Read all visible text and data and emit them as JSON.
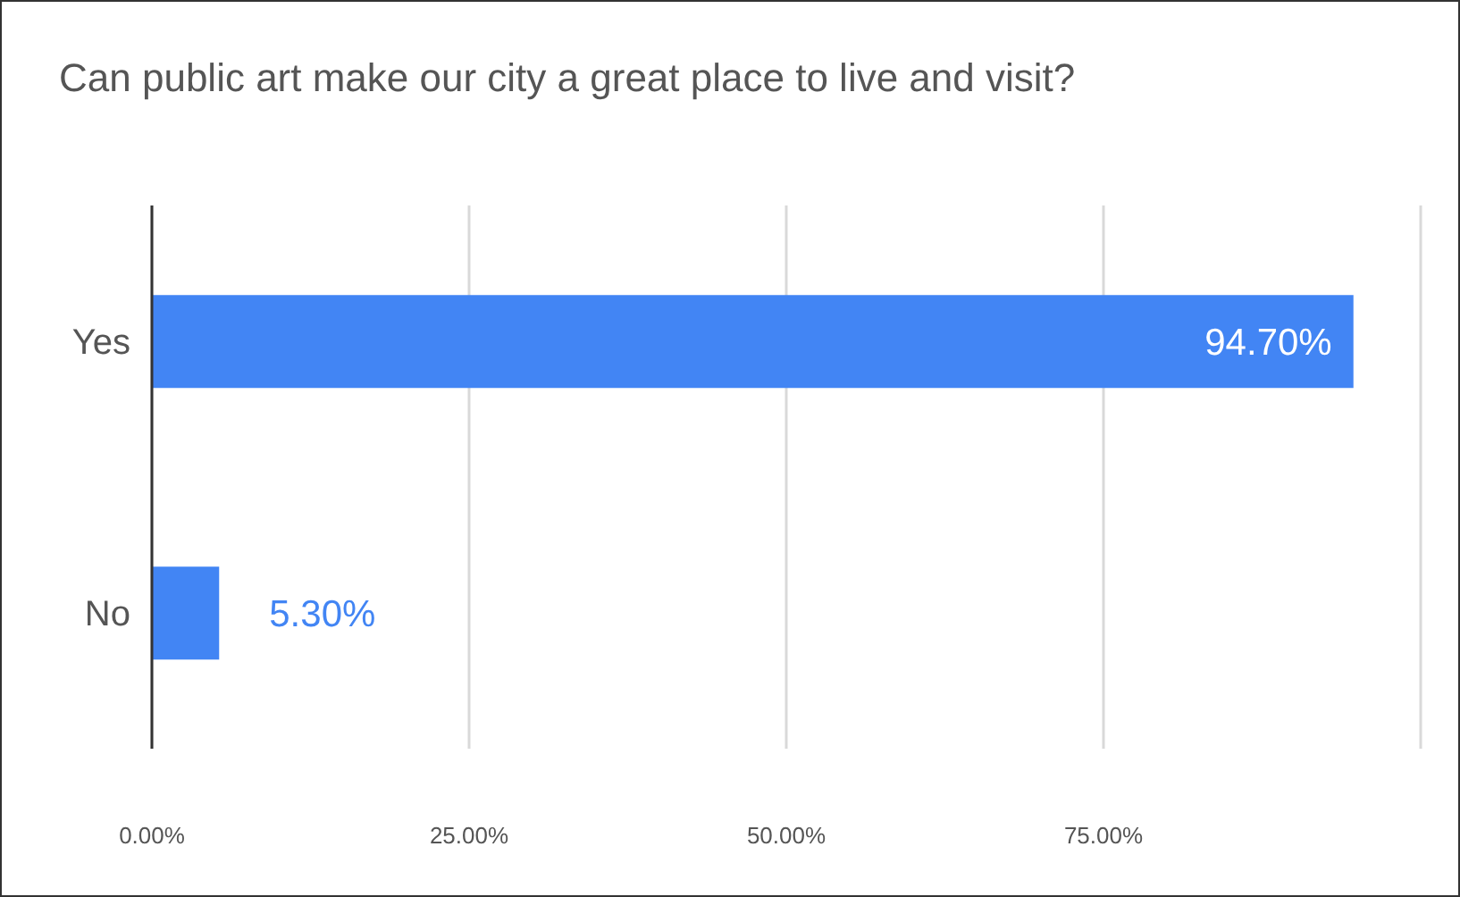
{
  "chart_data": {
    "type": "bar",
    "orientation": "horizontal",
    "title": "Can public art make our city a great place to live and visit?",
    "categories": [
      "Yes",
      "No"
    ],
    "values": [
      94.7,
      5.3
    ],
    "value_labels": [
      "94.70%",
      "5.30%"
    ],
    "color": "#4285f4",
    "xlim": [
      0,
      100
    ],
    "xticks": [
      {
        "value": 0,
        "label": "0.00%"
      },
      {
        "value": 25,
        "label": "25.00%"
      },
      {
        "value": 50,
        "label": "50.00%"
      },
      {
        "value": 75,
        "label": "75.00%"
      },
      {
        "value": 100,
        "label": null
      }
    ],
    "grid": "x"
  }
}
